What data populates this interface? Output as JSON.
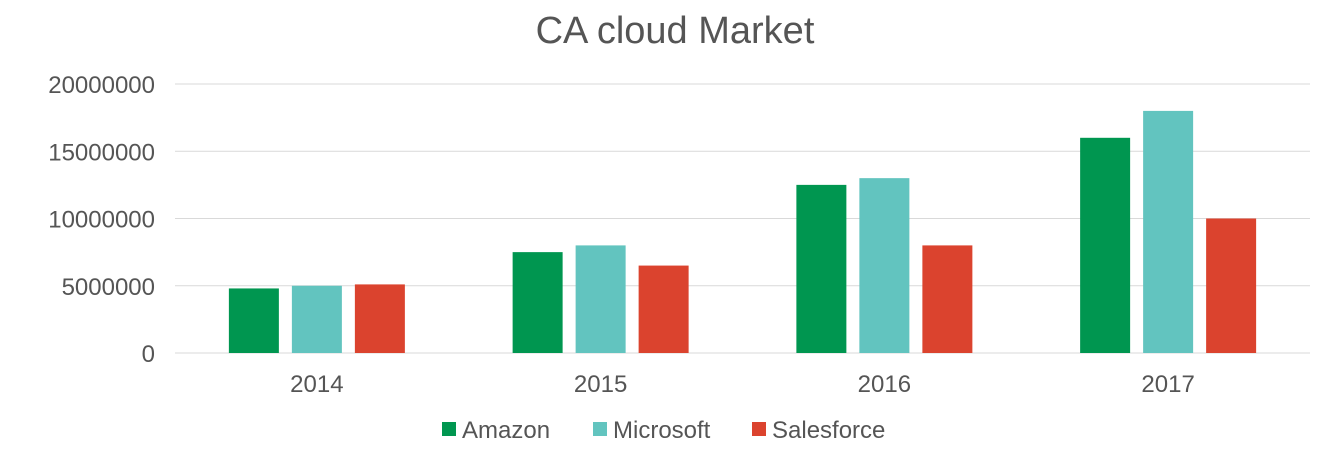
{
  "chart_data": {
    "type": "bar",
    "title": "CA cloud Market",
    "xlabel": "",
    "ylabel": "",
    "categories": [
      "2014",
      "2015",
      "2016",
      "2017"
    ],
    "series": [
      {
        "name": "Amazon",
        "color": "#009650",
        "values": [
          4800000,
          7500000,
          12500000,
          16000000
        ]
      },
      {
        "name": "Microsoft",
        "color": "#62c4bf",
        "values": [
          5000000,
          8000000,
          13000000,
          18000000
        ]
      },
      {
        "name": "Salesforce",
        "color": "#db432e",
        "values": [
          5100000,
          6500000,
          8000000,
          10000000
        ]
      }
    ],
    "ylim": [
      0,
      20000000
    ],
    "yticks": [
      "0",
      "5000000",
      "10000000",
      "15000000",
      "20000000"
    ],
    "grid": true,
    "legend_position": "bottom"
  }
}
